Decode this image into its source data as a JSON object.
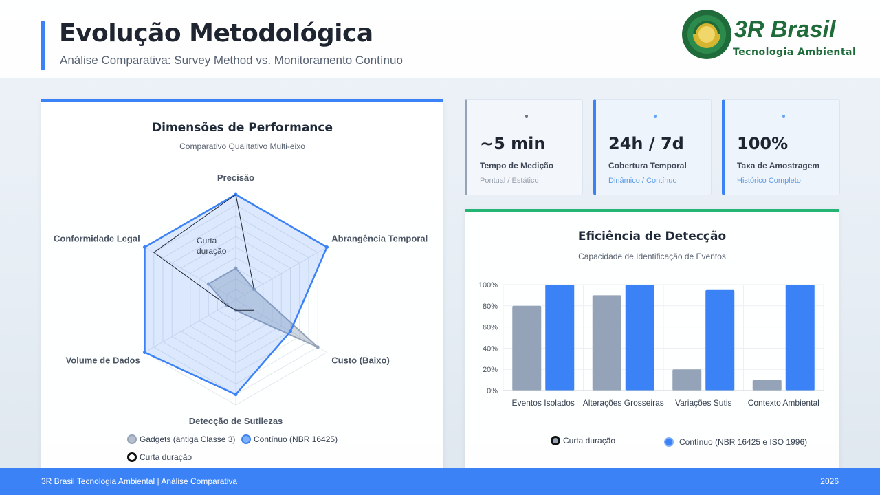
{
  "header": {
    "title": "Evolução Metodológica",
    "subtitle": "Análise Comparativa: Survey Method vs. Monitoramento Contínuo",
    "logo_brand": "3R Brasil",
    "logo_tagline": "Tecnologia Ambiental"
  },
  "stats": [
    {
      "value": "~5 min",
      "label": "Tempo de Medição",
      "note": "Pontual / Estático"
    },
    {
      "value": "24h / 7d",
      "label": "Cobertura Temporal",
      "note": "Dinâmico / Contínuo"
    },
    {
      "value": "100%",
      "label": "Taxa de Amostragem",
      "note": "Histórico Completo"
    }
  ],
  "radar": {
    "title": "Dimensões de Performance",
    "subtitle": "Comparativo Qualitativo Multi-eixo",
    "annotation": [
      "Curta",
      "duração"
    ],
    "legend": [
      "Gadgets (antiga Classe 3)",
      "Contínuo (NBR 16425)",
      "Curta duração"
    ]
  },
  "bars": {
    "title": "Eficiência de Detecção",
    "subtitle": "Capacidade de Identificação de Eventos",
    "legend": [
      "Curta duração",
      "Contínuo (NBR 16425 e ISO 1996)"
    ]
  },
  "chart_data": [
    {
      "type": "radar",
      "axes": [
        "Precisão",
        "Abrangência Temporal",
        "Custo (Baixo)",
        "Detecção de Sutilezas",
        "Volume de Dados",
        "Conformidade Legal"
      ],
      "rmax": 100,
      "levels": 10,
      "series": [
        {
          "name": "Gadgets (antiga Classe 3)",
          "values": [
            30,
            20,
            90,
            10,
            10,
            30
          ],
          "color": "#94a3b8"
        },
        {
          "name": "Contínuo (NBR 16425)",
          "values": [
            100,
            100,
            60,
            90,
            100,
            100
          ],
          "color": "#3b82f6"
        },
        {
          "name": "Curta duração",
          "values": [
            100,
            20,
            20,
            10,
            10,
            90
          ],
          "color": "#1e2430"
        }
      ]
    },
    {
      "type": "bar",
      "categories": [
        "Eventos Isolados",
        "Alterações Grosseiras",
        "Variações Sutis",
        "Contexto Ambiental"
      ],
      "series": [
        {
          "name": "Curta duração",
          "values": [
            80,
            90,
            20,
            10
          ],
          "color": "#94a3b8"
        },
        {
          "name": "Contínuo (NBR 16425 e ISO 1996)",
          "values": [
            100,
            100,
            95,
            100
          ],
          "color": "#3b82f6"
        }
      ],
      "ylim": [
        0,
        100
      ],
      "yticks": [
        "0%",
        "20%",
        "40%",
        "60%",
        "80%",
        "100%"
      ]
    }
  ],
  "footer": {
    "left": "3R Brasil Tecnologia Ambiental | Análise Comparativa",
    "right": "2026"
  }
}
